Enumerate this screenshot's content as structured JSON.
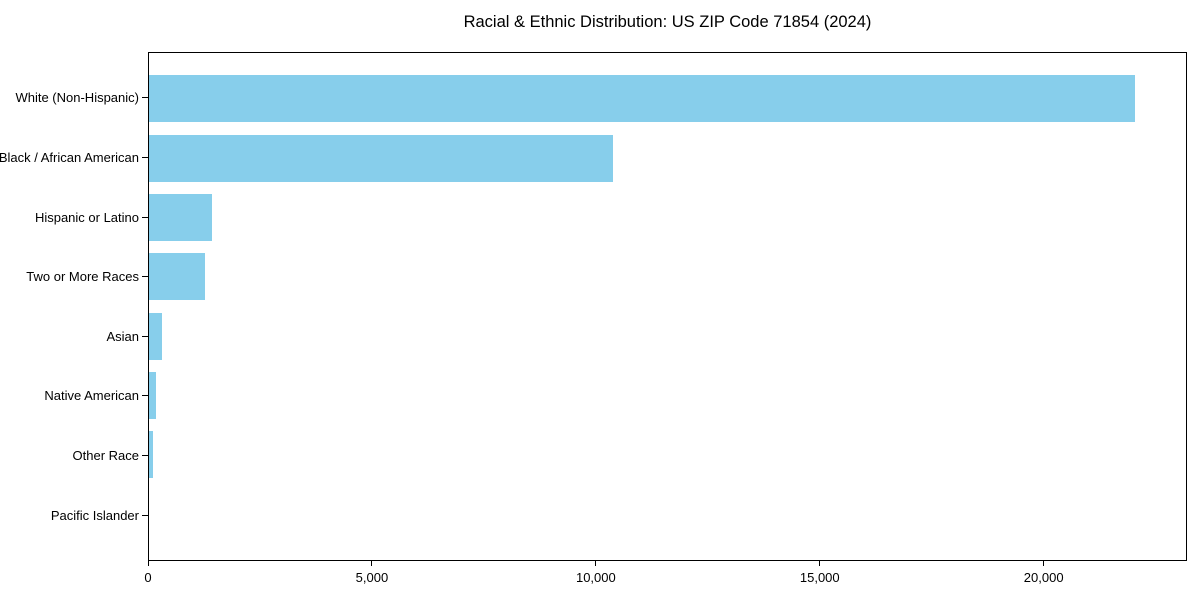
{
  "chart_data": {
    "type": "bar",
    "orientation": "horizontal",
    "title": "Racial & Ethnic Distribution: US ZIP Code 71854 (2024)",
    "categories": [
      "White (Non-Hispanic)",
      "Black / African American",
      "Hispanic or Latino",
      "Two or More Races",
      "Asian",
      "Native American",
      "Other Race",
      "Pacific Islander"
    ],
    "values": [
      22060,
      10370,
      1420,
      1260,
      300,
      165,
      85,
      0
    ],
    "xlabel": "",
    "ylabel": "",
    "xlim": [
      0,
      23200
    ],
    "x_ticks": [
      0,
      5000,
      10000,
      15000,
      20000
    ],
    "x_tick_labels": [
      "0",
      "5,000",
      "10,000",
      "15,000",
      "20,000"
    ],
    "bar_color": "#87CEEB",
    "background_color": "#ffffff",
    "spine_color": "#000000",
    "grid": false,
    "legend": false
  }
}
